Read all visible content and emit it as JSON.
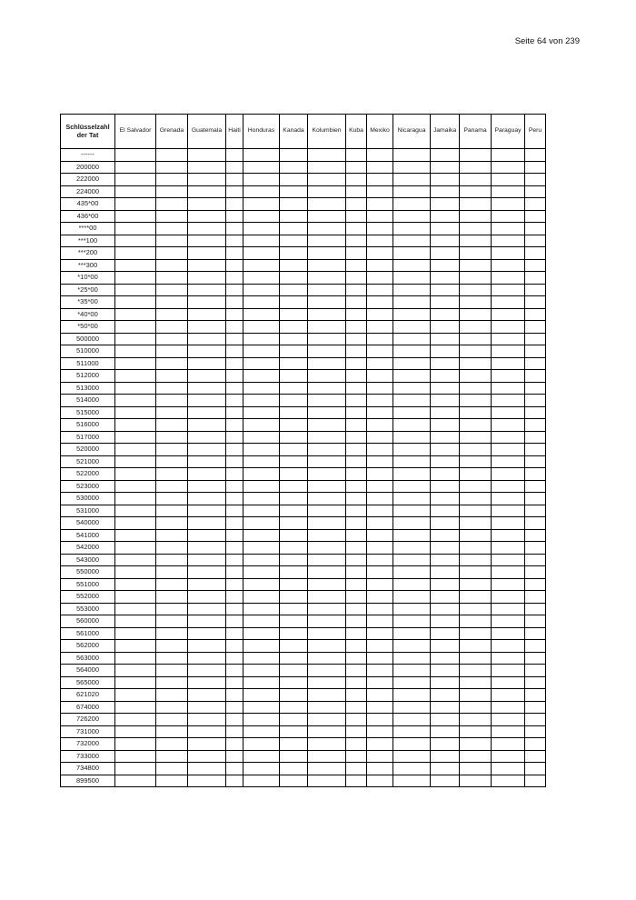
{
  "page": {
    "label": "Seite 64 von 239"
  },
  "table": {
    "key_header": "Schlüsselzahl der Tat",
    "columns": [
      "El Salvador",
      "Grenada",
      "Guatemala",
      "Haiti",
      "Honduras",
      "Kanada",
      "Kolumbien",
      "Kuba",
      "Mexiko",
      "Nicaragua",
      "Jamaika",
      "Panama",
      "Paraguay",
      "Peru"
    ],
    "rows": [
      "------",
      "200000",
      "222000",
      "224000",
      "435*00",
      "436*00",
      "****00",
      "***100",
      "***200",
      "***300",
      "*10*00",
      "*25*00",
      "*35*00",
      "*40*00",
      "*50*00",
      "500000",
      "510000",
      "511000",
      "512000",
      "513000",
      "514000",
      "515000",
      "516000",
      "517000",
      "520000",
      "521000",
      "522000",
      "523000",
      "530000",
      "531000",
      "540000",
      "541000",
      "542000",
      "543000",
      "550000",
      "551000",
      "552000",
      "553000",
      "560000",
      "561000",
      "562000",
      "563000",
      "564000",
      "565000",
      "621020",
      "674000",
      "726200",
      "731000",
      "732000",
      "733000",
      "734800",
      "899500"
    ],
    "cell_value": ""
  }
}
